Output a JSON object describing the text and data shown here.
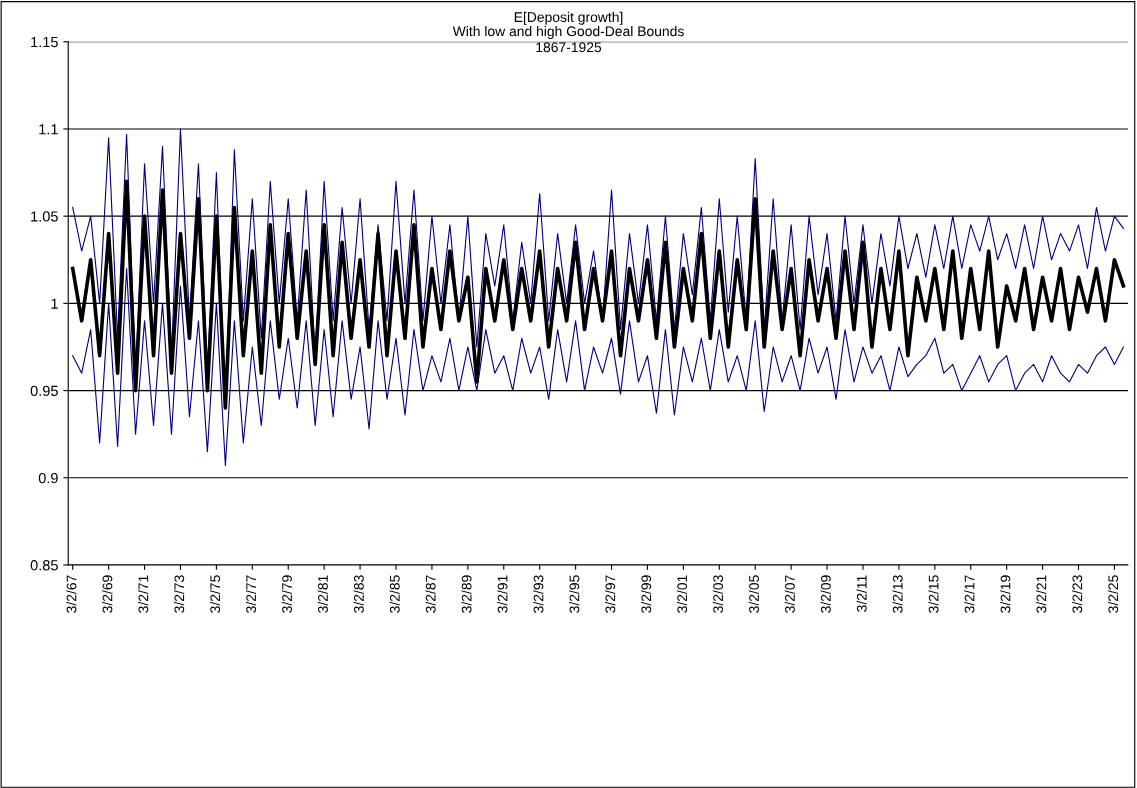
{
  "chart_data": {
    "type": "line",
    "title": "E[Deposit growth]",
    "subtitle": "With low and high Good-Deal Bounds\n1867-1925",
    "categories": [
      "3/2/67",
      null,
      null,
      null,
      "3/2/69",
      null,
      null,
      null,
      "3/2/71",
      null,
      null,
      null,
      "3/2/73",
      null,
      null,
      null,
      "3/2/75",
      null,
      null,
      null,
      "3/2/77",
      null,
      null,
      null,
      "3/2/79",
      null,
      null,
      null,
      "3/2/81",
      null,
      null,
      null,
      "3/2/83",
      null,
      null,
      null,
      "3/2/85",
      null,
      null,
      null,
      "3/2/87",
      null,
      null,
      null,
      "3/2/89",
      null,
      null,
      null,
      "3/2/91",
      null,
      null,
      null,
      "3/2/93",
      null,
      null,
      null,
      "3/2/95",
      null,
      null,
      null,
      "3/2/97",
      null,
      null,
      null,
      "3/2/99",
      null,
      null,
      null,
      "3/2/01",
      null,
      null,
      null,
      "3/2/03",
      null,
      null,
      null,
      "3/2/05",
      null,
      null,
      null,
      "3/2/07",
      null,
      null,
      null,
      "3/2/09",
      null,
      null,
      null,
      "3/2/11",
      null,
      null,
      null,
      "3/2/13",
      null,
      null,
      null,
      "3/2/15",
      null,
      null,
      null,
      "3/2/17",
      null,
      null,
      null,
      "3/2/19",
      null,
      null,
      null,
      "3/2/21",
      null,
      null,
      null,
      "3/2/23",
      null,
      null,
      null,
      "3/2/25",
      null
    ],
    "series": [
      {
        "color": "#000080",
        "values": [
          1.055,
          1.03,
          1.05,
          1.0,
          1.095,
          0.98,
          1.097,
          0.96,
          1.08,
          1.0,
          1.09,
          0.97,
          1.1,
          0.99,
          1.08,
          0.96,
          1.075,
          0.94,
          1.088,
          0.99,
          1.06,
          0.98,
          1.07,
          1.0,
          1.06,
          0.99,
          1.065,
          0.97,
          1.07,
          0.99,
          1.055,
          1.0,
          1.06,
          0.985,
          1.045,
          0.99,
          1.07,
          1.0,
          1.065,
          0.99,
          1.05,
          1.0,
          1.045,
          0.99,
          1.05,
          0.975,
          1.04,
          1.01,
          1.045,
          0.99,
          1.035,
          1.0,
          1.063,
          0.99,
          1.04,
          1.0,
          1.045,
          1.0,
          1.03,
          0.99,
          1.065,
          0.985,
          1.04,
          1.0,
          1.045,
          0.99,
          1.05,
          0.985,
          1.04,
          1.005,
          1.055,
          0.99,
          1.06,
          0.995,
          1.05,
          0.99,
          1.083,
          0.985,
          1.06,
          0.99,
          1.045,
          0.985,
          1.05,
          1.005,
          1.04,
          0.99,
          1.05,
          1.0,
          1.045,
          1.0,
          1.04,
          1.01,
          1.05,
          1.02,
          1.04,
          1.015,
          1.045,
          1.02,
          1.05,
          1.02,
          1.045,
          1.03,
          1.05,
          1.025,
          1.04,
          1.02,
          1.045,
          1.02,
          1.05,
          1.025,
          1.04,
          1.03,
          1.045,
          1.02,
          1.055,
          1.03,
          1.05,
          1.043
        ]
      },
      {
        "color": "#000080",
        "values": [
          0.97,
          0.96,
          0.985,
          0.92,
          1.0,
          0.918,
          1.02,
          0.925,
          0.99,
          0.93,
          1.0,
          0.925,
          1.01,
          0.935,
          0.99,
          0.915,
          1.0,
          0.907,
          0.99,
          0.92,
          0.975,
          0.93,
          0.99,
          0.945,
          0.98,
          0.94,
          0.99,
          0.93,
          0.985,
          0.935,
          0.99,
          0.945,
          0.975,
          0.928,
          0.99,
          0.945,
          0.98,
          0.936,
          0.985,
          0.95,
          0.97,
          0.955,
          0.98,
          0.95,
          0.975,
          0.95,
          0.985,
          0.96,
          0.97,
          0.95,
          0.98,
          0.96,
          0.975,
          0.945,
          0.985,
          0.955,
          0.99,
          0.95,
          0.975,
          0.96,
          0.98,
          0.948,
          0.99,
          0.955,
          0.97,
          0.937,
          0.985,
          0.936,
          0.975,
          0.955,
          0.98,
          0.95,
          0.985,
          0.955,
          0.97,
          0.95,
          0.99,
          0.938,
          0.975,
          0.955,
          0.97,
          0.95,
          0.98,
          0.96,
          0.975,
          0.945,
          0.985,
          0.955,
          0.975,
          0.96,
          0.97,
          0.95,
          0.975,
          0.958,
          0.965,
          0.97,
          0.98,
          0.96,
          0.965,
          0.95,
          0.96,
          0.97,
          0.955,
          0.965,
          0.97,
          0.95,
          0.96,
          0.965,
          0.955,
          0.97,
          0.96,
          0.955,
          0.965,
          0.96,
          0.97,
          0.975,
          0.965,
          0.975
        ]
      },
      {
        "color": "#000000",
        "values": [
          1.02,
          0.99,
          1.025,
          0.97,
          1.04,
          0.96,
          1.07,
          0.95,
          1.05,
          0.97,
          1.065,
          0.96,
          1.04,
          0.98,
          1.06,
          0.95,
          1.05,
          0.94,
          1.055,
          0.97,
          1.03,
          0.96,
          1.045,
          0.975,
          1.04,
          0.98,
          1.03,
          0.965,
          1.045,
          0.97,
          1.035,
          0.98,
          1.025,
          0.975,
          1.04,
          0.97,
          1.03,
          0.98,
          1.045,
          0.975,
          1.02,
          0.985,
          1.03,
          0.99,
          1.015,
          0.955,
          1.02,
          0.99,
          1.025,
          0.985,
          1.02,
          0.99,
          1.03,
          0.975,
          1.02,
          0.99,
          1.035,
          0.985,
          1.02,
          0.99,
          1.03,
          0.97,
          1.02,
          0.99,
          1.025,
          0.98,
          1.035,
          0.975,
          1.02,
          0.99,
          1.04,
          0.98,
          1.03,
          0.975,
          1.025,
          0.985,
          1.06,
          0.975,
          1.03,
          0.985,
          1.02,
          0.97,
          1.025,
          0.99,
          1.02,
          0.98,
          1.03,
          0.985,
          1.035,
          0.975,
          1.02,
          0.985,
          1.03,
          0.97,
          1.015,
          0.99,
          1.02,
          0.985,
          1.03,
          0.98,
          1.02,
          0.985,
          1.03,
          0.975,
          1.01,
          0.99,
          1.02,
          0.985,
          1.015,
          0.99,
          1.02,
          0.985,
          1.015,
          0.995,
          1.02,
          0.99,
          1.025,
          1.01
        ]
      }
    ],
    "ylim": [
      0.85,
      1.15
    ],
    "yticks": [
      0.85,
      0.9,
      0.95,
      1,
      1.05,
      1.1,
      1.15
    ],
    "grid": "y",
    "marker": "none",
    "line_style": "solid"
  }
}
